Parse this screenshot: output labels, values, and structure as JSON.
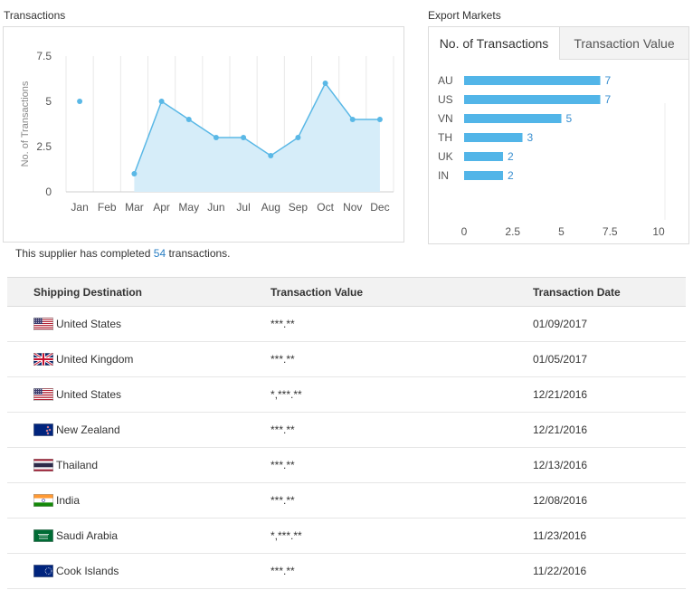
{
  "transactions_title": "Transactions",
  "export_markets_title": "Export Markets",
  "tabs": [
    {
      "label": "No. of Transactions",
      "active": true
    },
    {
      "label": "Transaction Value",
      "active": false
    }
  ],
  "summary": {
    "prefix": "This supplier has completed",
    "count": "54",
    "suffix": "transactions."
  },
  "colors": {
    "line": "#5ab8e6",
    "area": "#d6edf9",
    "bar": "#52b5e8",
    "label": "#3a8fd0"
  },
  "chart_data": [
    {
      "type": "line",
      "ylabel": "No. of Transactions",
      "categories": [
        "Jan",
        "Feb",
        "Mar",
        "Apr",
        "May",
        "Jun",
        "Jul",
        "Aug",
        "Sep",
        "Oct",
        "Nov",
        "Dec"
      ],
      "values": [
        5,
        null,
        1,
        5,
        4,
        3,
        3,
        2,
        3,
        6,
        4,
        4
      ],
      "yticks": [
        "0",
        "2.5",
        "5",
        "7.5"
      ],
      "ylim": [
        0,
        7.5
      ],
      "grid": true
    },
    {
      "type": "bar",
      "orientation": "horizontal",
      "categories": [
        "AU",
        "US",
        "VN",
        "TH",
        "UK",
        "IN"
      ],
      "values": [
        7,
        7,
        5,
        3,
        2,
        2
      ],
      "xticks": [
        "0",
        "2.5",
        "5",
        "7.5",
        "10"
      ],
      "xlim": [
        0,
        10
      ]
    }
  ],
  "table": {
    "headers": [
      "Shipping Destination",
      "Transaction Value",
      "Transaction Date"
    ],
    "rows": [
      {
        "country": "United States",
        "flag": "us",
        "value": "***.**",
        "date": "01/09/2017"
      },
      {
        "country": "United Kingdom",
        "flag": "uk",
        "value": "***.**",
        "date": "01/05/2017"
      },
      {
        "country": "United States",
        "flag": "us",
        "value": "*,***.**",
        "date": "12/21/2016"
      },
      {
        "country": "New Zealand",
        "flag": "nz",
        "value": "***.**",
        "date": "12/21/2016"
      },
      {
        "country": "Thailand",
        "flag": "th",
        "value": "***.**",
        "date": "12/13/2016"
      },
      {
        "country": "India",
        "flag": "in",
        "value": "***.**",
        "date": "12/08/2016"
      },
      {
        "country": "Saudi Arabia",
        "flag": "sa",
        "value": "*,***.**",
        "date": "11/23/2016"
      },
      {
        "country": "Cook Islands",
        "flag": "ck",
        "value": "***.**",
        "date": "11/22/2016"
      }
    ]
  }
}
